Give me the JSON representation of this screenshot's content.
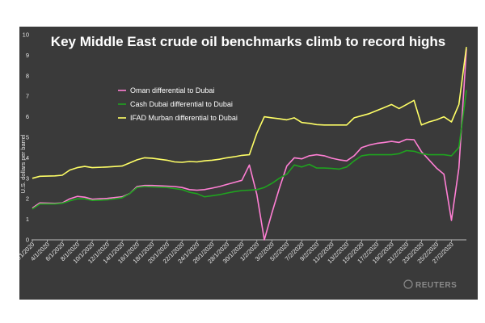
{
  "chart_data": {
    "type": "line",
    "title": "Key Middle East crude oil benchmarks climb to record highs",
    "ylabel": "U.S. dollars per barrel",
    "xlabel": "",
    "ylim": [
      0,
      10
    ],
    "yticks": [
      0,
      1,
      2,
      3,
      4,
      5,
      6,
      7,
      8,
      9,
      10
    ],
    "grid": false,
    "legend_position": "upper-left",
    "watermark": "REUTERS",
    "x_tick_labels": [
      "2/1/2020",
      "4/1/2020",
      "6/1/2020",
      "8/1/2020",
      "10/1/2020",
      "12/1/2020",
      "14/1/2020",
      "16/1/2020",
      "18/1/2020",
      "20/1/2020",
      "22/1/2020",
      "24/1/2020",
      "26/1/2020",
      "28/1/2020",
      "30/1/2020",
      "1/2/2020",
      "3/2/2020",
      "5/2/2020",
      "7/2/2020",
      "9/2/2020",
      "11/2/2020",
      "13/2/2020",
      "15/2/2020",
      "17/2/2020",
      "19/2/2020",
      "21/2/2020",
      "23/2/2020",
      "25/2/2020",
      "27/2/2020"
    ],
    "x": [
      0,
      1,
      2,
      3,
      4,
      5,
      6,
      7,
      8,
      9,
      10,
      11,
      12,
      13,
      14,
      15,
      16,
      17,
      18,
      19,
      20,
      21,
      22,
      23,
      24,
      25,
      26,
      27,
      28,
      29,
      30,
      31,
      32,
      33,
      34,
      35,
      36,
      37,
      38,
      39,
      40,
      41,
      42,
      43,
      44,
      45,
      46,
      47,
      48,
      49,
      50,
      51,
      52,
      53,
      54,
      55,
      56
    ],
    "series": [
      {
        "name": "Oman differential to Dubai",
        "color": "#ff7fd4",
        "points": [
          [
            0,
            1.55
          ],
          [
            1,
            1.8
          ],
          [
            3,
            1.78
          ],
          [
            4,
            1.8
          ],
          [
            5,
            2.0
          ],
          [
            6,
            2.12
          ],
          [
            7,
            2.08
          ],
          [
            8,
            1.98
          ],
          [
            10,
            2.02
          ],
          [
            12,
            2.1
          ],
          [
            13,
            2.25
          ],
          [
            14,
            2.6
          ],
          [
            15,
            2.65
          ],
          [
            16,
            2.65
          ],
          [
            18,
            2.62
          ],
          [
            19,
            2.6
          ],
          [
            20,
            2.55
          ],
          [
            21,
            2.45
          ],
          [
            22,
            2.42
          ],
          [
            23,
            2.45
          ],
          [
            24,
            2.52
          ],
          [
            25,
            2.6
          ],
          [
            26,
            2.7
          ],
          [
            27,
            2.8
          ],
          [
            28,
            2.9
          ],
          [
            29,
            3.65
          ],
          [
            30,
            2.2
          ],
          [
            31,
            0.0
          ],
          [
            32,
            1.3
          ],
          [
            33,
            2.5
          ],
          [
            34,
            3.6
          ],
          [
            35,
            4.0
          ],
          [
            36,
            3.95
          ],
          [
            37,
            4.1
          ],
          [
            38,
            4.15
          ],
          [
            39,
            4.1
          ],
          [
            40,
            3.98
          ],
          [
            41,
            3.9
          ],
          [
            42,
            3.85
          ],
          [
            43,
            4.1
          ],
          [
            44,
            4.5
          ],
          [
            45,
            4.62
          ],
          [
            46,
            4.7
          ],
          [
            47,
            4.75
          ],
          [
            48,
            4.8
          ],
          [
            49,
            4.75
          ],
          [
            50,
            4.9
          ],
          [
            51,
            4.88
          ],
          [
            52,
            4.3
          ],
          [
            53,
            3.9
          ],
          [
            54,
            3.5
          ],
          [
            55,
            3.2
          ],
          [
            56,
            0.95
          ],
          [
            57,
            3.5
          ],
          [
            58,
            9.3
          ]
        ]
      },
      {
        "name": "Cash Dubai differential to Dubai",
        "color": "#1fa31f",
        "points": [
          [
            0,
            1.5
          ],
          [
            1,
            1.75
          ],
          [
            3,
            1.75
          ],
          [
            4,
            1.78
          ],
          [
            5,
            1.9
          ],
          [
            6,
            2.0
          ],
          [
            7,
            2.0
          ],
          [
            8,
            1.92
          ],
          [
            10,
            1.95
          ],
          [
            12,
            2.05
          ],
          [
            13,
            2.25
          ],
          [
            14,
            2.55
          ],
          [
            15,
            2.6
          ],
          [
            16,
            2.58
          ],
          [
            18,
            2.55
          ],
          [
            19,
            2.5
          ],
          [
            20,
            2.45
          ],
          [
            21,
            2.32
          ],
          [
            22,
            2.25
          ],
          [
            23,
            2.1
          ],
          [
            24,
            2.15
          ],
          [
            25,
            2.2
          ],
          [
            26,
            2.28
          ],
          [
            27,
            2.35
          ],
          [
            28,
            2.4
          ],
          [
            29,
            2.42
          ],
          [
            30,
            2.45
          ],
          [
            31,
            2.55
          ],
          [
            32,
            2.75
          ],
          [
            33,
            3.0
          ],
          [
            34,
            3.2
          ],
          [
            35,
            3.65
          ],
          [
            36,
            3.55
          ],
          [
            37,
            3.68
          ],
          [
            38,
            3.5
          ],
          [
            39,
            3.5
          ],
          [
            40,
            3.48
          ],
          [
            41,
            3.45
          ],
          [
            42,
            3.55
          ],
          [
            43,
            3.85
          ],
          [
            44,
            4.1
          ],
          [
            45,
            4.15
          ],
          [
            46,
            4.15
          ],
          [
            47,
            4.15
          ],
          [
            48,
            4.15
          ],
          [
            49,
            4.2
          ],
          [
            50,
            4.35
          ],
          [
            51,
            4.32
          ],
          [
            52,
            4.2
          ],
          [
            53,
            4.15
          ],
          [
            54,
            4.15
          ],
          [
            55,
            4.15
          ],
          [
            56,
            4.1
          ],
          [
            57,
            4.5
          ],
          [
            58,
            7.3
          ]
        ]
      },
      {
        "name": "IFAD Murban differential to Dubai",
        "color": "#ffff66",
        "points": [
          [
            0,
            3.0
          ],
          [
            1,
            3.1
          ],
          [
            3,
            3.12
          ],
          [
            4,
            3.15
          ],
          [
            5,
            3.4
          ],
          [
            6,
            3.52
          ],
          [
            7,
            3.58
          ],
          [
            8,
            3.52
          ],
          [
            10,
            3.55
          ],
          [
            12,
            3.6
          ],
          [
            13,
            3.75
          ],
          [
            14,
            3.9
          ],
          [
            15,
            4.0
          ],
          [
            16,
            3.98
          ],
          [
            18,
            3.88
          ],
          [
            19,
            3.8
          ],
          [
            20,
            3.78
          ],
          [
            21,
            3.82
          ],
          [
            22,
            3.8
          ],
          [
            23,
            3.85
          ],
          [
            24,
            3.88
          ],
          [
            25,
            3.93
          ],
          [
            26,
            4.0
          ],
          [
            27,
            4.05
          ],
          [
            28,
            4.12
          ],
          [
            29,
            4.15
          ],
          [
            30,
            5.2
          ],
          [
            31,
            6.0
          ],
          [
            32,
            5.95
          ],
          [
            33,
            5.9
          ],
          [
            34,
            5.85
          ],
          [
            35,
            5.95
          ],
          [
            36,
            5.72
          ],
          [
            37,
            5.68
          ],
          [
            38,
            5.62
          ],
          [
            39,
            5.6
          ],
          [
            40,
            5.6
          ],
          [
            41,
            5.6
          ],
          [
            42,
            5.6
          ],
          [
            43,
            5.95
          ],
          [
            44,
            6.05
          ],
          [
            45,
            6.15
          ],
          [
            46,
            6.3
          ],
          [
            47,
            6.45
          ],
          [
            48,
            6.6
          ],
          [
            49,
            6.4
          ],
          [
            50,
            6.6
          ],
          [
            51,
            6.8
          ],
          [
            52,
            5.6
          ],
          [
            53,
            5.75
          ],
          [
            54,
            5.85
          ],
          [
            55,
            6.0
          ],
          [
            56,
            5.75
          ],
          [
            57,
            6.6
          ],
          [
            58,
            9.4
          ]
        ]
      }
    ]
  }
}
